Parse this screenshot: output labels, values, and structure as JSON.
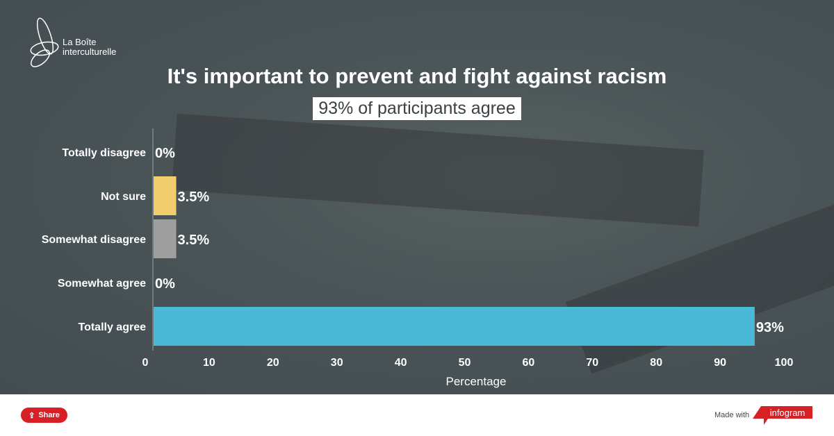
{
  "logo": {
    "line1": "La Boîte",
    "line2": "interculturelle"
  },
  "title": "It's important to prevent and fight against racism",
  "subtitle": "93% of participants agree",
  "chart_data": {
    "type": "bar",
    "orientation": "horizontal",
    "categories": [
      "Totally disagree",
      "Not sure",
      "Somewhat disagree",
      "Somewhat agree",
      "Totally agree"
    ],
    "values": [
      0,
      3.5,
      3.5,
      0,
      93
    ],
    "data_labels": [
      "0%",
      "3.5%",
      "3.5%",
      "0%",
      "93%"
    ],
    "colors": [
      "#4ab9d6",
      "#f2cd6b",
      "#9e9e9e",
      "#4ab9d6",
      "#4ab9d6"
    ],
    "xlabel": "Percentage",
    "xlim": [
      0,
      100
    ],
    "xticks": [
      "0",
      "10",
      "20",
      "30",
      "40",
      "50",
      "60",
      "70",
      "80",
      "90",
      "100"
    ],
    "grid": false
  },
  "footer": {
    "share": "Share",
    "made_with": "Made with",
    "brand": "infogram",
    "brand_color": "#d71f26"
  }
}
